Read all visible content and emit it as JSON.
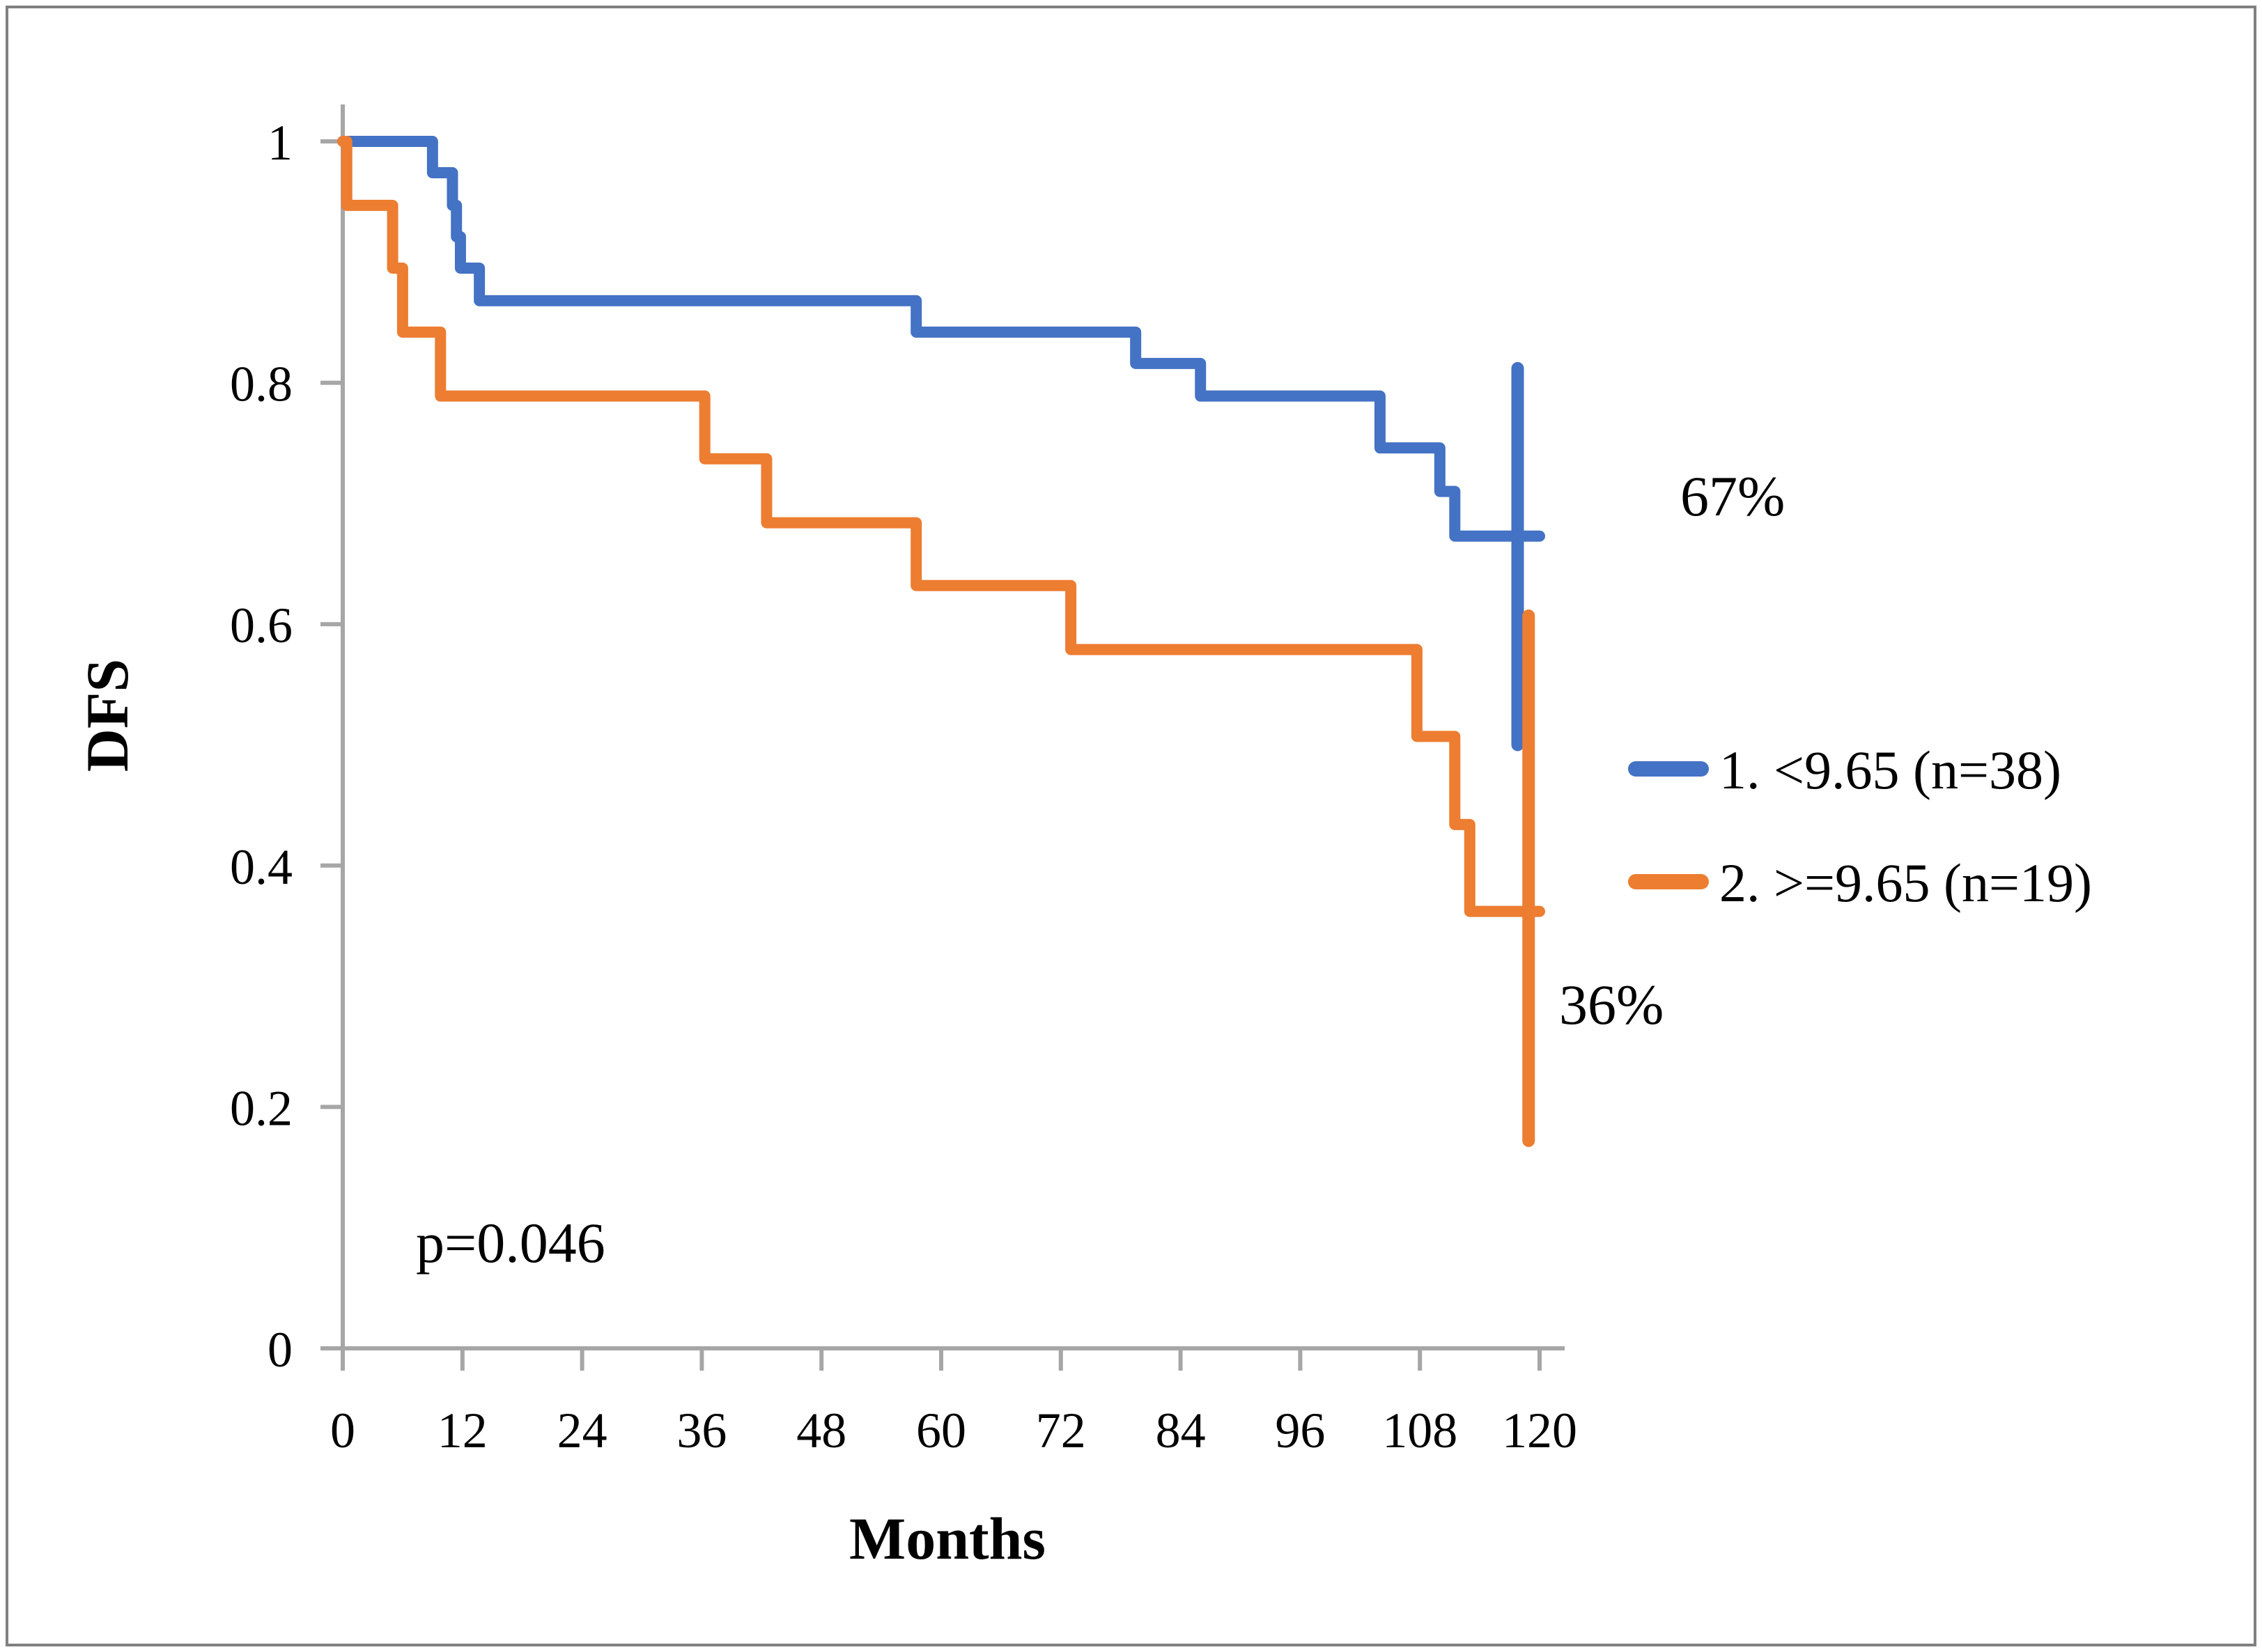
{
  "figure": {
    "border_color": "#808080",
    "background": "#ffffff",
    "axis_color": "#a6a6a6",
    "text_color": "#000000"
  },
  "annotations": {
    "p_value": "p=0.046",
    "blue_end_label": "67%",
    "orange_end_label": "36%"
  },
  "legend": {
    "items": [
      {
        "label": "1. <9.65 (n=38)",
        "color": "#4472C4"
      },
      {
        "label": "2. >=9.65 (n=19)",
        "color": "#ED7D31"
      }
    ]
  },
  "chart_data": {
    "type": "line",
    "subtype": "kaplan-meier-step",
    "title": "",
    "xlabel": "Months",
    "ylabel": "DFS",
    "xlim": [
      0,
      120
    ],
    "ylim": [
      0,
      1
    ],
    "x_ticks": [
      0,
      12,
      24,
      36,
      48,
      60,
      72,
      84,
      96,
      108,
      120
    ],
    "y_ticks": [
      0,
      0.2,
      0.4,
      0.6,
      0.8,
      1
    ],
    "y_tick_labels": [
      "0",
      "0.2",
      "0.4",
      "0.6",
      "0.8",
      "1"
    ],
    "grid": false,
    "legend_position": "right",
    "series": [
      {
        "name": "1. <9.65 (n=38)",
        "color": "#4472C4",
        "final_value_label": "67%",
        "points": [
          [
            0,
            1.0
          ],
          [
            9,
            0.974
          ],
          [
            11,
            0.947
          ],
          [
            11.4,
            0.921
          ],
          [
            11.8,
            0.895
          ],
          [
            13.7,
            0.868
          ],
          [
            57.5,
            0.842
          ],
          [
            79.5,
            0.816
          ],
          [
            86,
            0.789
          ],
          [
            104,
            0.746
          ],
          [
            110,
            0.71
          ],
          [
            111.5,
            0.673
          ],
          [
            120,
            0.673
          ]
        ],
        "whisker": {
          "month": 117.8,
          "from": 0.5,
          "to": 0.812
        }
      },
      {
        "name": "2. >=9.65 (n=19)",
        "color": "#ED7D31",
        "final_value_label": "36%",
        "points": [
          [
            0,
            1.0
          ],
          [
            0.4,
            0.947
          ],
          [
            5,
            0.895
          ],
          [
            6,
            0.842
          ],
          [
            9.8,
            0.789
          ],
          [
            36.3,
            0.737
          ],
          [
            42.5,
            0.684
          ],
          [
            57.5,
            0.632
          ],
          [
            73,
            0.579
          ],
          [
            107.7,
            0.507
          ],
          [
            111.5,
            0.434
          ],
          [
            113,
            0.362
          ],
          [
            120,
            0.362
          ]
        ],
        "whisker": {
          "month": 118.9,
          "from": 0.172,
          "to": 0.607
        }
      }
    ]
  }
}
